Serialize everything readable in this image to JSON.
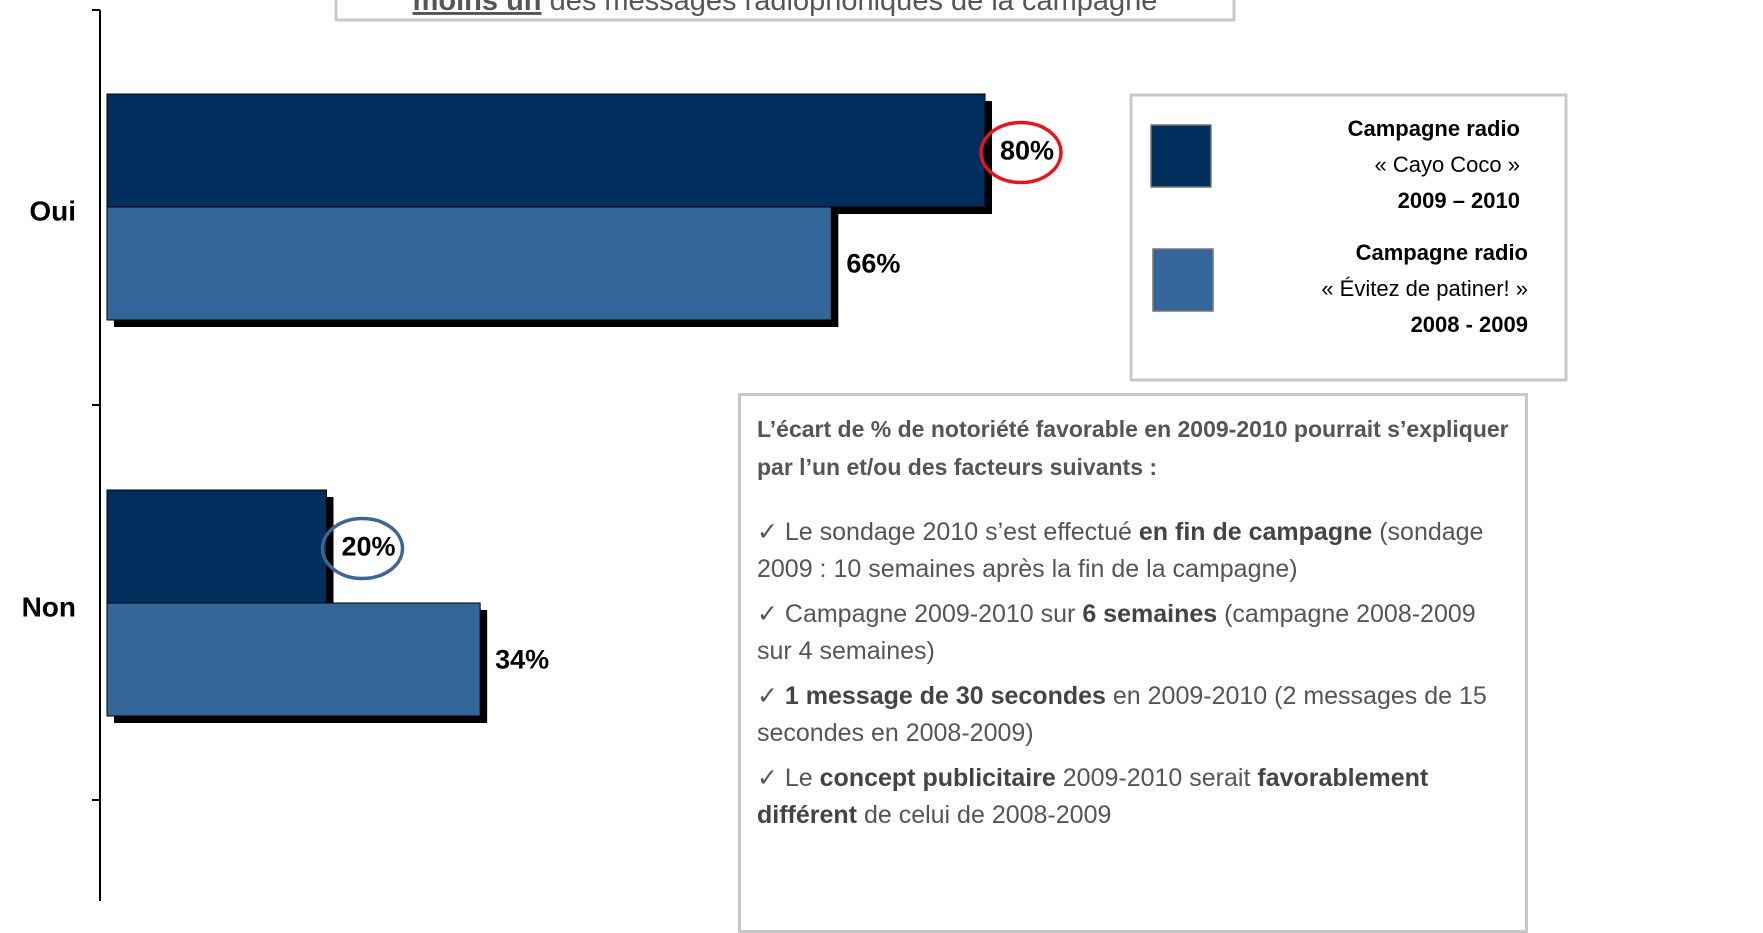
{
  "chart_data": {
    "type": "bar",
    "orientation": "horizontal",
    "title": {
      "bold": "moins un",
      "rest": " des messages radiophoniques de la campagne"
    },
    "categories": [
      "Oui",
      "Non"
    ],
    "series": [
      {
        "name": [
          "Campagne radio",
          "« Cayo Coco »",
          "2009 – 2010"
        ],
        "color": "#002f5e",
        "values": [
          80,
          20
        ],
        "value_labels": [
          "80%",
          "20%"
        ]
      },
      {
        "name": [
          "Campagne radio",
          "«  Évitez de patiner! »",
          "2008 - 2009"
        ],
        "color": "#336699",
        "values": [
          66,
          34
        ],
        "value_labels": [
          "66%",
          "34%"
        ]
      }
    ],
    "highlights": [
      {
        "series": 0,
        "index": 0,
        "color": "#e8141b"
      },
      {
        "series": 0,
        "index": 1,
        "color": "#3a6595"
      }
    ],
    "note": {
      "heading": "L’écart de % de notoriété favorable en 2009-2010 pourrait s’expliquer par l’un et/ou des facteurs suivants :",
      "bullets": [
        [
          {
            "text": "✓ Le sondage 2010 s’est effectué "
          },
          {
            "text": "en fin de campagne",
            "bold": true
          },
          {
            "text": " (sondage 2009 : 10 semaines après la fin de la campagne)"
          }
        ],
        [
          {
            "text": "✓ Campagne 2009-2010 sur "
          },
          {
            "text": "6 semaines",
            "bold": true
          },
          {
            "text": " (campagne 2008-2009 sur 4 semaines)"
          }
        ],
        [
          {
            "text": "✓ "
          },
          {
            "text": "1 message de 30 secondes",
            "bold": true
          },
          {
            "text": " en 2009-2010 (2 messages de 15 secondes en 2008-2009)"
          }
        ],
        [
          {
            "text": "✓ Le "
          },
          {
            "text": "concept publicitaire",
            "bold": true
          },
          {
            "text": " 2009-2010 serait "
          },
          {
            "text": "favorablement différent",
            "bold": true
          },
          {
            "text": " de celui de 2008-2009"
          }
        ]
      ]
    }
  }
}
